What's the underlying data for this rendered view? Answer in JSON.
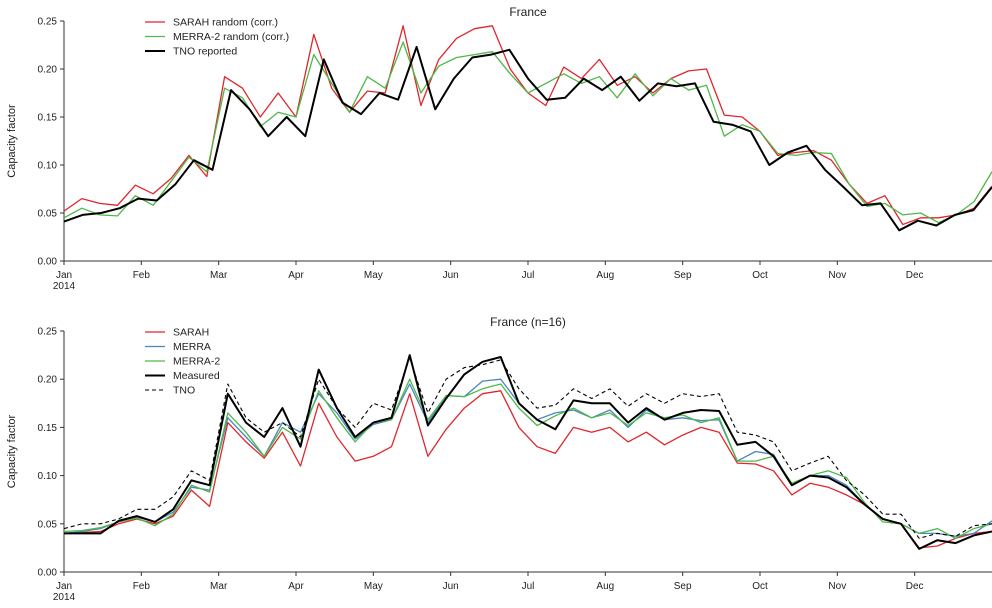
{
  "chart_data": [
    {
      "type": "line",
      "title": "France",
      "xlabel": "",
      "ylabel": "Capacity factor",
      "ylim": [
        0,
        0.25
      ],
      "yticks": [
        "0.00",
        "0.05",
        "0.10",
        "0.15",
        "0.20",
        "0.25"
      ],
      "xlim": [
        0,
        12
      ],
      "month_labels": [
        "Jan",
        "Feb",
        "Mar",
        "Apr",
        "May",
        "Jun",
        "Jul",
        "Aug",
        "Sep",
        "Oct",
        "Nov",
        "Dec"
      ],
      "year_label": "2014",
      "legend_position": "top-left",
      "series": [
        {
          "name": "SARAH random (corr.)",
          "color": "#e0262c",
          "dash": "",
          "width": 1.3,
          "values": [
            0.052,
            0.065,
            0.06,
            0.058,
            0.079,
            0.07,
            0.086,
            0.11,
            0.088,
            0.192,
            0.18,
            0.15,
            0.175,
            0.15,
            0.236,
            0.18,
            0.155,
            0.177,
            0.175,
            0.245,
            0.162,
            0.21,
            0.232,
            0.242,
            0.245,
            0.2,
            0.175,
            0.162,
            0.202,
            0.19,
            0.21,
            0.183,
            0.192,
            0.175,
            0.19,
            0.198,
            0.2,
            0.152,
            0.15,
            0.135,
            0.11,
            0.113,
            0.115,
            0.105,
            0.08,
            0.06,
            0.068,
            0.038,
            0.045,
            0.045,
            0.048,
            0.055,
            0.078
          ]
        },
        {
          "name": "MERRA-2 random (corr.)",
          "color": "#4fb848",
          "dash": "",
          "width": 1.3,
          "values": [
            0.045,
            0.055,
            0.048,
            0.047,
            0.068,
            0.058,
            0.083,
            0.108,
            0.093,
            0.18,
            0.17,
            0.14,
            0.155,
            0.15,
            0.215,
            0.185,
            0.155,
            0.192,
            0.18,
            0.228,
            0.175,
            0.203,
            0.212,
            0.215,
            0.218,
            0.195,
            0.175,
            0.185,
            0.195,
            0.185,
            0.192,
            0.17,
            0.195,
            0.172,
            0.19,
            0.178,
            0.183,
            0.13,
            0.142,
            0.135,
            0.112,
            0.11,
            0.113,
            0.112,
            0.08,
            0.057,
            0.06,
            0.048,
            0.05,
            0.04,
            0.048,
            0.062,
            0.093
          ]
        },
        {
          "name": "TNO reported",
          "color": "#000000",
          "dash": "",
          "width": 2.0,
          "values": [
            0.041,
            0.048,
            0.05,
            0.055,
            0.065,
            0.063,
            0.08,
            0.105,
            0.095,
            0.178,
            0.158,
            0.13,
            0.15,
            0.13,
            0.21,
            0.165,
            0.153,
            0.175,
            0.168,
            0.223,
            0.158,
            0.19,
            0.212,
            0.215,
            0.22,
            0.19,
            0.168,
            0.17,
            0.19,
            0.178,
            0.192,
            0.167,
            0.185,
            0.182,
            0.185,
            0.145,
            0.142,
            0.135,
            0.1,
            0.113,
            0.12,
            0.095,
            0.077,
            0.058,
            0.06,
            0.032,
            0.042,
            0.037,
            0.048,
            0.053,
            0.077
          ]
        }
      ]
    },
    {
      "type": "line",
      "title": "France (n=16)",
      "xlabel": "",
      "ylabel": "Capacity factor",
      "ylim": [
        0,
        0.25
      ],
      "yticks": [
        "0.00",
        "0.05",
        "0.10",
        "0.15",
        "0.20",
        "0.25"
      ],
      "xlim": [
        0,
        12
      ],
      "month_labels": [
        "Jan",
        "Feb",
        "Mar",
        "Apr",
        "May",
        "Jun",
        "Jul",
        "Aug",
        "Sep",
        "Oct",
        "Nov",
        "Dec"
      ],
      "year_label": "2014",
      "legend_position": "top-left",
      "series": [
        {
          "name": "SARAH",
          "color": "#e0262c",
          "dash": "",
          "width": 1.3,
          "values": [
            0.04,
            0.041,
            0.042,
            0.05,
            0.055,
            0.05,
            0.058,
            0.085,
            0.068,
            0.155,
            0.135,
            0.118,
            0.145,
            0.11,
            0.175,
            0.14,
            0.115,
            0.12,
            0.13,
            0.185,
            0.12,
            0.148,
            0.17,
            0.185,
            0.188,
            0.15,
            0.13,
            0.123,
            0.15,
            0.145,
            0.15,
            0.135,
            0.145,
            0.132,
            0.142,
            0.15,
            0.145,
            0.113,
            0.112,
            0.105,
            0.08,
            0.092,
            0.088,
            0.08,
            0.07,
            0.055,
            0.05,
            0.025,
            0.027,
            0.035,
            0.04,
            0.042
          ]
        },
        {
          "name": "MERRA",
          "color": "#4a86c0",
          "dash": "",
          "width": 1.3,
          "values": [
            0.04,
            0.042,
            0.045,
            0.052,
            0.057,
            0.052,
            0.062,
            0.088,
            0.085,
            0.16,
            0.14,
            0.12,
            0.155,
            0.145,
            0.185,
            0.165,
            0.138,
            0.153,
            0.158,
            0.195,
            0.155,
            0.183,
            0.182,
            0.198,
            0.2,
            0.175,
            0.158,
            0.165,
            0.168,
            0.16,
            0.168,
            0.15,
            0.168,
            0.158,
            0.16,
            0.157,
            0.158,
            0.115,
            0.125,
            0.122,
            0.09,
            0.1,
            0.1,
            0.09,
            0.07,
            0.055,
            0.05,
            0.04,
            0.04,
            0.037,
            0.04,
            0.053
          ]
        },
        {
          "name": "MERRA-2",
          "color": "#4fb848",
          "dash": "",
          "width": 1.3,
          "values": [
            0.042,
            0.043,
            0.046,
            0.052,
            0.056,
            0.048,
            0.06,
            0.09,
            0.083,
            0.165,
            0.145,
            0.12,
            0.15,
            0.138,
            0.188,
            0.16,
            0.135,
            0.155,
            0.158,
            0.2,
            0.158,
            0.183,
            0.182,
            0.19,
            0.195,
            0.17,
            0.152,
            0.162,
            0.17,
            0.16,
            0.165,
            0.152,
            0.165,
            0.16,
            0.163,
            0.155,
            0.16,
            0.115,
            0.115,
            0.12,
            0.092,
            0.1,
            0.105,
            0.098,
            0.072,
            0.052,
            0.05,
            0.04,
            0.045,
            0.035,
            0.045,
            0.05
          ]
        },
        {
          "name": "Measured",
          "color": "#000000",
          "dash": "",
          "width": 2.0,
          "values": [
            0.04,
            0.04,
            0.04,
            0.053,
            0.058,
            0.052,
            0.065,
            0.095,
            0.09,
            0.185,
            0.155,
            0.14,
            0.17,
            0.13,
            0.21,
            0.17,
            0.14,
            0.155,
            0.16,
            0.225,
            0.152,
            0.18,
            0.205,
            0.218,
            0.223,
            0.175,
            0.158,
            0.148,
            0.178,
            0.175,
            0.175,
            0.155,
            0.17,
            0.158,
            0.165,
            0.168,
            0.167,
            0.132,
            0.135,
            0.12,
            0.09,
            0.1,
            0.098,
            0.088,
            0.07,
            0.055,
            0.05,
            0.024,
            0.033,
            0.03,
            0.038,
            0.042
          ]
        },
        {
          "name": "TNO",
          "color": "#000000",
          "dash": "4,3",
          "width": 1.1,
          "values": [
            0.045,
            0.05,
            0.05,
            0.055,
            0.065,
            0.065,
            0.078,
            0.105,
            0.095,
            0.195,
            0.16,
            0.145,
            0.155,
            0.14,
            0.2,
            0.17,
            0.15,
            0.175,
            0.168,
            0.222,
            0.165,
            0.2,
            0.212,
            0.215,
            0.22,
            0.19,
            0.17,
            0.173,
            0.19,
            0.18,
            0.19,
            0.172,
            0.185,
            0.175,
            0.185,
            0.182,
            0.185,
            0.145,
            0.142,
            0.135,
            0.105,
            0.113,
            0.12,
            0.095,
            0.08,
            0.06,
            0.06,
            0.035,
            0.04,
            0.037,
            0.048,
            0.05
          ]
        }
      ]
    }
  ]
}
